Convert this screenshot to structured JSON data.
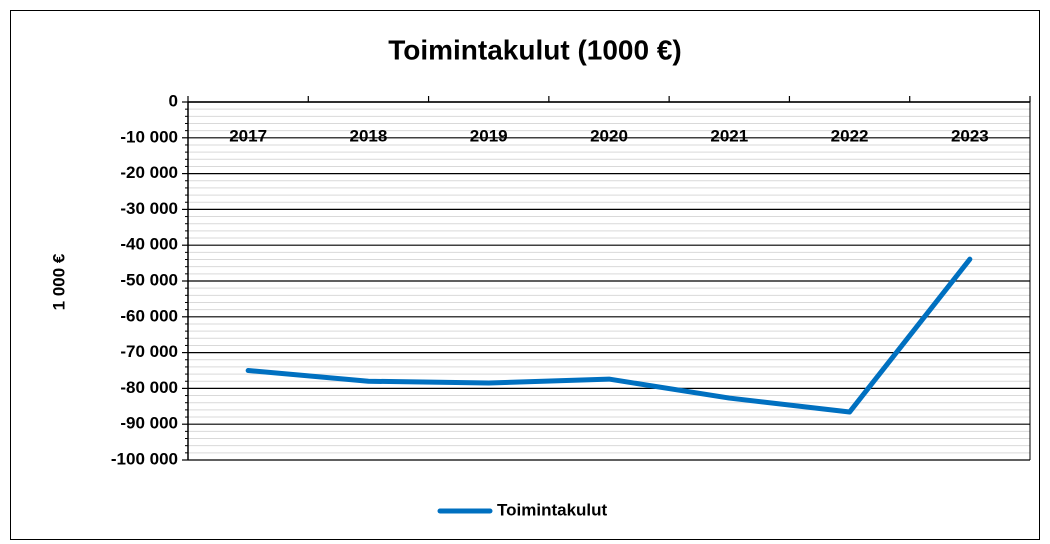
{
  "chart_data": {
    "type": "line",
    "title": "Toimintakulut (1000 €)",
    "ylabel": "1 000 €",
    "categories": [
      "2017",
      "2018",
      "2019",
      "2020",
      "2021",
      "2022",
      "2023"
    ],
    "series": [
      {
        "name": "Toimintakulut",
        "color": "#0070c0",
        "values": [
          -75000,
          -78000,
          -78500,
          -77400,
          -82700,
          -86600,
          -43900
        ]
      }
    ],
    "ylim": [
      -100000,
      0
    ],
    "yticks": [
      0,
      {
        "value": -10000,
        "label": "-10 000"
      },
      {
        "value": -20000,
        "label": "-20 000"
      },
      {
        "value": -30000,
        "label": "-30 000"
      },
      {
        "value": -40000,
        "label": "-40 000"
      },
      {
        "value": -50000,
        "label": "-50 000"
      },
      {
        "value": -60000,
        "label": "-60 000"
      },
      {
        "value": -70000,
        "label": "-70 000"
      },
      {
        "value": -80000,
        "label": "-80 000"
      },
      {
        "value": -90000,
        "label": "-90 000"
      },
      {
        "value": -100000,
        "label": "-100 000"
      }
    ],
    "grid": true,
    "minor_grid": true,
    "legend": "bottom"
  }
}
